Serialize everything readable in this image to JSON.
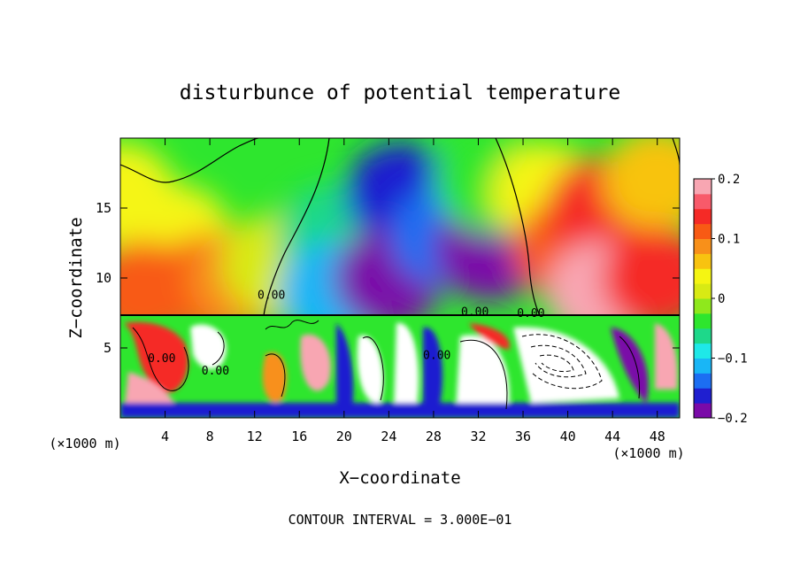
{
  "chart_data": {
    "type": "heatmap",
    "title": "disturbunce of potential temperature",
    "xlabel": "X−coordinate",
    "ylabel": "Z−coordinate",
    "x_unit_label": "(×1000 m)",
    "x_unit_label_right": "(×1000 m)",
    "xlim": [
      0,
      50
    ],
    "ylim": [
      0,
      20
    ],
    "x_ticks": [
      4,
      8,
      12,
      16,
      20,
      24,
      28,
      32,
      36,
      40,
      44,
      48
    ],
    "y_ticks": [
      5,
      10,
      15
    ],
    "colorbar": {
      "range": [
        -0.2,
        0.2
      ],
      "tick_values": [
        0.2,
        0.1,
        0,
        -0.1,
        -0.2
      ],
      "tick_labels": [
        "0.2",
        "0.1",
        "0",
        "−0.1",
        "−0.2"
      ],
      "colors": [
        "#7a0aa8",
        "#1f1fd0",
        "#1c6ef2",
        "#19b6f6",
        "#1fe8e8",
        "#1ed88a",
        "#2ee62e",
        "#8fe81c",
        "#d8ea14",
        "#f5f512",
        "#f8c310",
        "#f8901a",
        "#f85a14",
        "#f52a26",
        "#f85a6a",
        "#f8a6b2"
      ]
    },
    "contour_labels": [
      {
        "x": 13.5,
        "y": 8.5,
        "text": "0.00"
      },
      {
        "x": 8.5,
        "y": 3.1,
        "text": "0.00"
      },
      {
        "x": 28.3,
        "y": 4.2,
        "text": "0.00"
      },
      {
        "x": 3.7,
        "y": 4.0,
        "text": "0.00"
      },
      {
        "x": 31.7,
        "y": 7.3,
        "text": "0.00"
      },
      {
        "x": 36.7,
        "y": 7.2,
        "text": "0.00"
      }
    ],
    "regions_upper": [
      {
        "x": 0,
        "z": 16,
        "value": 0.04
      },
      {
        "x": 5,
        "z": 13,
        "value": 0.03
      },
      {
        "x": 2,
        "z": 9,
        "value": 0.12
      },
      {
        "x": 8,
        "z": 9.5,
        "value": 0.11
      },
      {
        "x": 11,
        "z": 10,
        "value": 0.08
      },
      {
        "x": 14,
        "z": 11,
        "value": 0.02
      },
      {
        "x": 19,
        "z": 13,
        "value": -0.06
      },
      {
        "x": 19,
        "z": 9,
        "value": -0.12
      },
      {
        "x": 25,
        "z": 16,
        "value": -0.17
      },
      {
        "x": 24,
        "z": 10,
        "value": -0.18
      },
      {
        "x": 29,
        "z": 13,
        "value": -0.15
      },
      {
        "x": 33,
        "z": 12,
        "value": -0.19
      },
      {
        "x": 33,
        "z": 17,
        "value": -0.05
      },
      {
        "x": 38,
        "z": 16,
        "value": 0.03
      },
      {
        "x": 40,
        "z": 12,
        "value": 0.12
      },
      {
        "x": 43,
        "z": 15,
        "value": 0.15
      },
      {
        "x": 43,
        "z": 9,
        "value": 0.2
      },
      {
        "x": 48,
        "z": 17,
        "value": 0.06
      },
      {
        "x": 48,
        "z": 10,
        "value": 0.13
      }
    ],
    "annotation": "CONTOUR INTERVAL = 3.000E−01"
  }
}
